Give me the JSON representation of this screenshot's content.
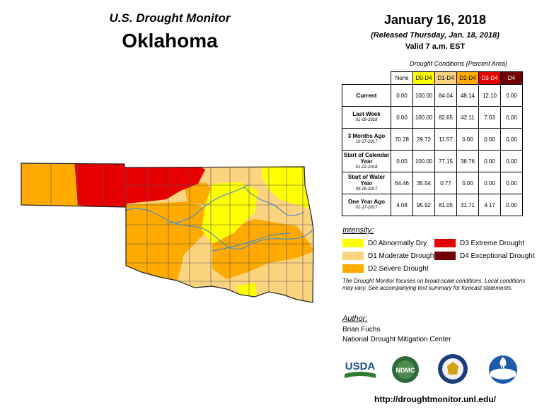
{
  "header": {
    "program": "U.S. Drought Monitor",
    "state": "Oklahoma",
    "date": "January 16, 2018",
    "released": "(Released Thursday, Jan. 18, 2018)",
    "valid": "Valid 7 a.m. EST"
  },
  "table": {
    "caption": "Drought Conditions (Percent Area)",
    "columns": [
      {
        "label": "None",
        "color": "#ffffff"
      },
      {
        "label": "D0-D4",
        "color": "#ffff00"
      },
      {
        "label": "D1-D4",
        "color": "#fcd37f"
      },
      {
        "label": "D2-D4",
        "color": "#ffaa00"
      },
      {
        "label": "D3-D4",
        "color": "#e60000"
      },
      {
        "label": "D4",
        "color": "#730000"
      }
    ],
    "rows": [
      {
        "label": "Current",
        "sub": "",
        "values": [
          "0.00",
          "100.00",
          "84.04",
          "48.14",
          "12.10",
          "0.00"
        ]
      },
      {
        "label": "Last Week",
        "sub": "01-09-2018",
        "values": [
          "0.00",
          "100.00",
          "82.65",
          "42.11",
          "7.03",
          "0.00"
        ]
      },
      {
        "label": "3 Months Ago",
        "sub": "10-17-2017",
        "values": [
          "70.28",
          "29.72",
          "11.57",
          "0.00",
          "0.00",
          "0.00"
        ]
      },
      {
        "label": "Start of Calendar Year",
        "sub": "01-02-2018",
        "values": [
          "0.00",
          "100.00",
          "77.15",
          "38.76",
          "0.00",
          "0.00"
        ]
      },
      {
        "label": "Start of Water Year",
        "sub": "09-26-2017",
        "values": [
          "64.46",
          "35.54",
          "0.77",
          "0.00",
          "0.00",
          "0.00"
        ]
      },
      {
        "label": "One Year Ago",
        "sub": "01-17-2017",
        "values": [
          "4.08",
          "95.92",
          "81.05",
          "31.71",
          "4.17",
          "0.00"
        ]
      }
    ]
  },
  "legend": {
    "heading": "Intensity:",
    "items": [
      {
        "label": "D0 Abnormally Dry",
        "color": "#ffff00"
      },
      {
        "label": "D1 Moderate Drought",
        "color": "#fcd37f"
      },
      {
        "label": "D2 Severe Drought",
        "color": "#ffaa00"
      },
      {
        "label": "D3 Extreme Drought",
        "color": "#e60000"
      },
      {
        "label": "D4 Exceptional Drought",
        "color": "#730000"
      }
    ]
  },
  "footnote": "The Drought Monitor focuses on broad-scale conditions. Local conditions may vary. See accompanying text summary for forecast statements.",
  "author": {
    "heading": "Author:",
    "name": "Brian Fuchs",
    "org": "National Drought Mitigation Center"
  },
  "logos": [
    {
      "name": "usda-logo",
      "text": "USDA"
    },
    {
      "name": "ndmc-logo",
      "text": "NDMC"
    },
    {
      "name": "commerce-seal",
      "text": ""
    },
    {
      "name": "noaa-logo",
      "text": "NOAA"
    }
  ],
  "url": "http://droughtmonitor.unl.edu/"
}
